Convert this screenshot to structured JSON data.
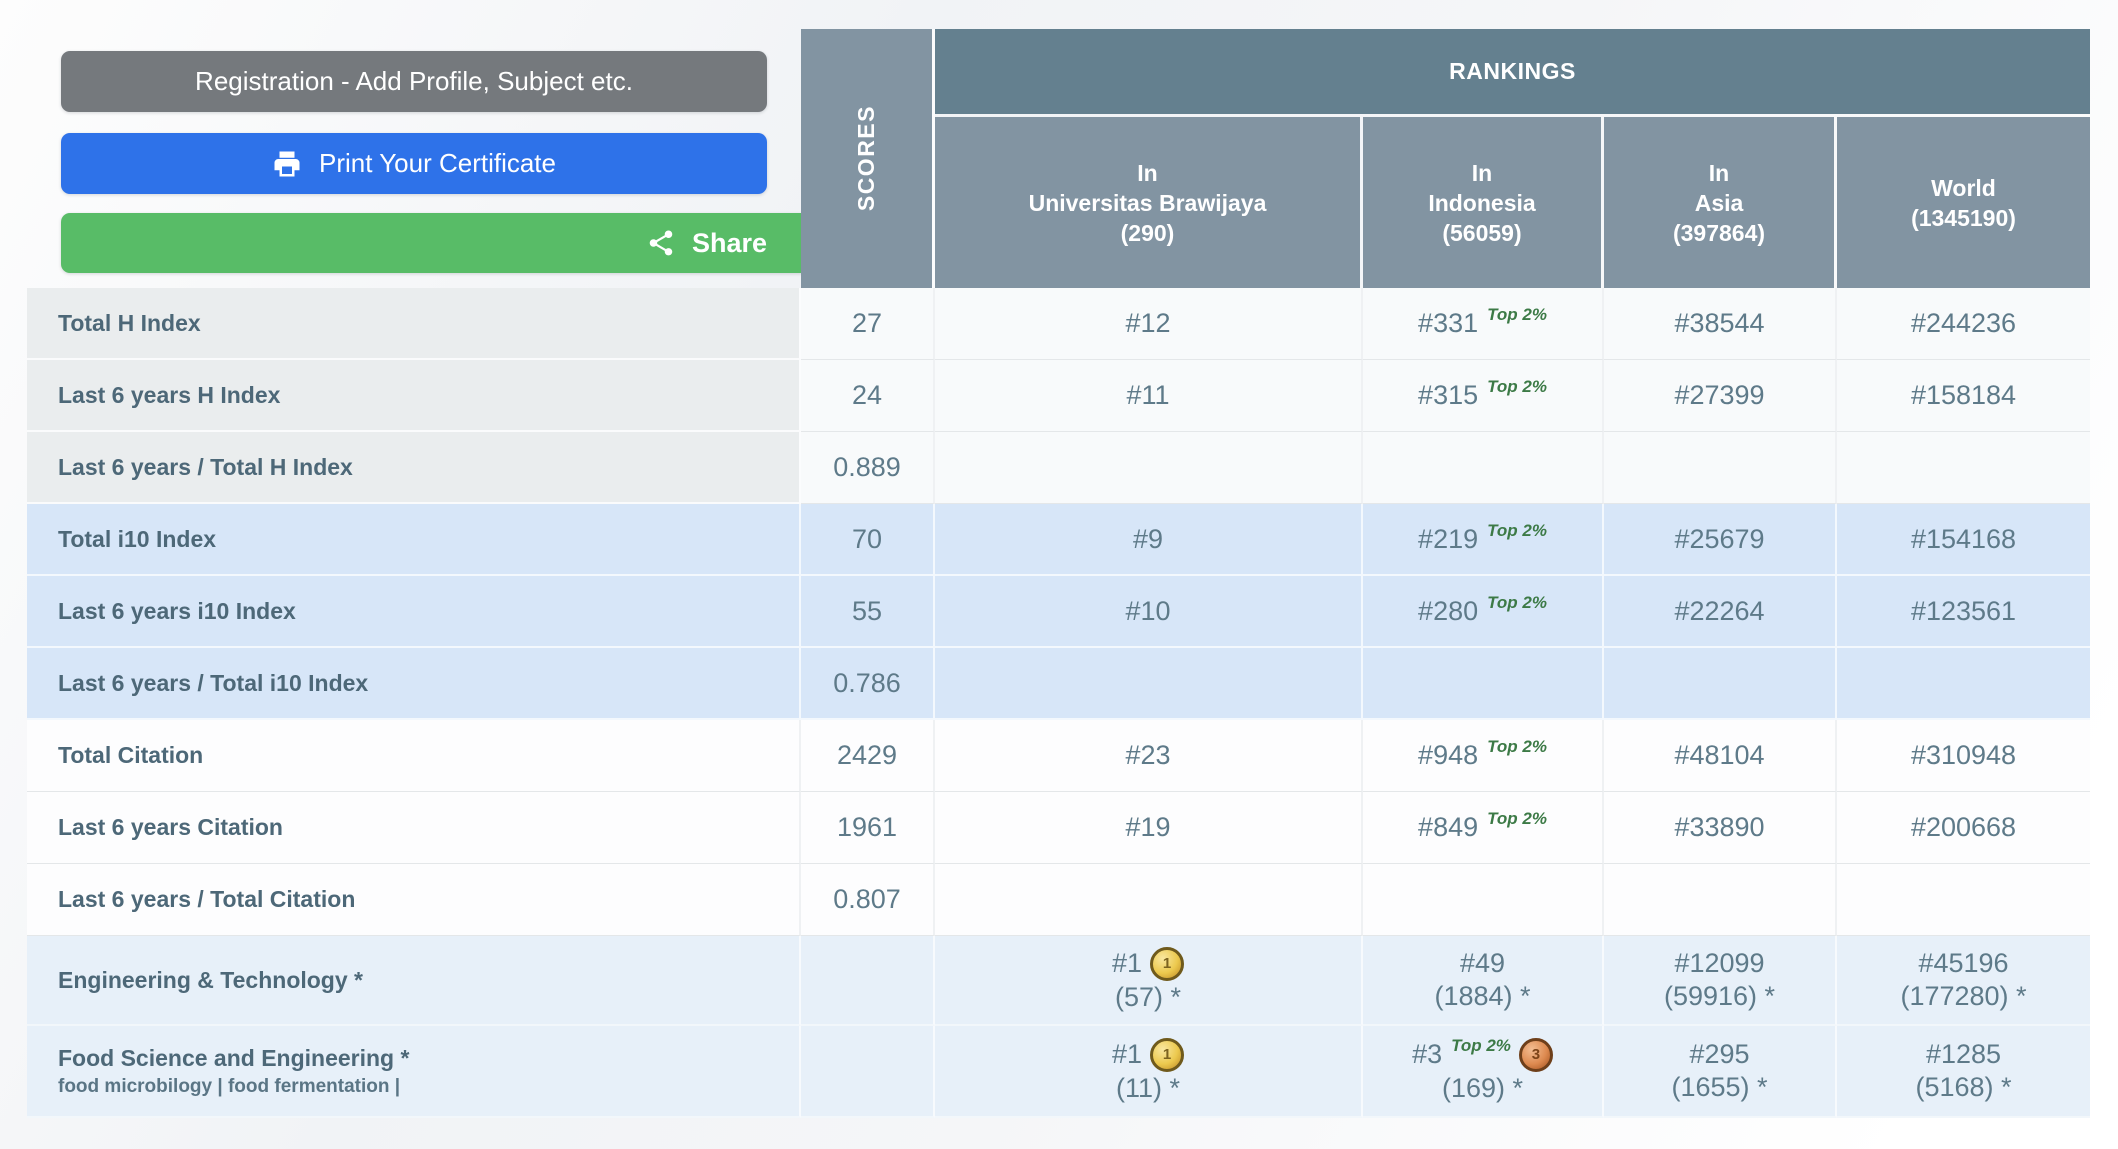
{
  "buttons": {
    "registration_label": "Registration - Add Profile, Subject etc.",
    "print_label": "Print Your Certificate",
    "share_label": "Share"
  },
  "table": {
    "scores_label": "SCORES",
    "rankings_label": "RANKINGS",
    "columns": [
      {
        "key": "universitas-brawijaya",
        "lines": [
          "In",
          "Universitas Brawijaya",
          "(290)"
        ]
      },
      {
        "key": "indonesia",
        "lines": [
          "In",
          "Indonesia",
          "(56059)"
        ]
      },
      {
        "key": "asia",
        "lines": [
          "In",
          "Asia",
          "(397864)"
        ]
      },
      {
        "key": "world",
        "lines": [
          "World",
          "(1345190)"
        ]
      }
    ],
    "medals": {
      "gold": "1",
      "bronze": "3"
    },
    "rows": [
      {
        "label": "Total H Index",
        "block": "h",
        "score": "27",
        "cells": [
          {
            "rank": "#12"
          },
          {
            "rank": "#331",
            "badge": "Top 2%"
          },
          {
            "rank": "#38544"
          },
          {
            "rank": "#244236"
          }
        ]
      },
      {
        "label": "Last 6 years H Index",
        "block": "h",
        "score": "24",
        "cells": [
          {
            "rank": "#11"
          },
          {
            "rank": "#315",
            "badge": "Top 2%"
          },
          {
            "rank": "#27399"
          },
          {
            "rank": "#158184"
          }
        ]
      },
      {
        "label": "Last 6 years / Total H Index",
        "block": "h",
        "score": "0.889",
        "cells": [
          {},
          {},
          {},
          {}
        ]
      },
      {
        "label": "Total i10 Index",
        "block": "i10",
        "score": "70",
        "cells": [
          {
            "rank": "#9"
          },
          {
            "rank": "#219",
            "badge": "Top 2%"
          },
          {
            "rank": "#25679"
          },
          {
            "rank": "#154168"
          }
        ]
      },
      {
        "label": "Last 6 years i10 Index",
        "block": "i10",
        "score": "55",
        "cells": [
          {
            "rank": "#10"
          },
          {
            "rank": "#280",
            "badge": "Top 2%"
          },
          {
            "rank": "#22264"
          },
          {
            "rank": "#123561"
          }
        ]
      },
      {
        "label": "Last 6 years / Total i10 Index",
        "block": "i10",
        "score": "0.786",
        "cells": [
          {},
          {},
          {},
          {}
        ]
      },
      {
        "label": "Total Citation",
        "block": "cit",
        "score": "2429",
        "cells": [
          {
            "rank": "#23"
          },
          {
            "rank": "#948",
            "badge": "Top 2%"
          },
          {
            "rank": "#48104"
          },
          {
            "rank": "#310948"
          }
        ]
      },
      {
        "label": "Last 6 years Citation",
        "block": "cit",
        "score": "1961",
        "cells": [
          {
            "rank": "#19"
          },
          {
            "rank": "#849",
            "badge": "Top 2%"
          },
          {
            "rank": "#33890"
          },
          {
            "rank": "#200668"
          }
        ]
      },
      {
        "label": "Last 6 years / Total Citation",
        "block": "cit",
        "score": "0.807",
        "cells": [
          {},
          {},
          {},
          {}
        ]
      },
      {
        "label": "Engineering & Technology *",
        "block": "sub",
        "score": "",
        "cells": [
          {
            "rank": "#1",
            "medal": "gold",
            "line2": "(57) *"
          },
          {
            "rank": "#49",
            "line2": "(1884) *"
          },
          {
            "rank": "#12099",
            "line2": "(59916) *"
          },
          {
            "rank": "#45196",
            "line2": "(177280) *"
          }
        ]
      },
      {
        "label": "Food Science and Engineering *",
        "sublabel": "food microbilogy | food fermentation |",
        "block": "sub",
        "score": "",
        "cells": [
          {
            "rank": "#1",
            "medal": "gold",
            "line2": "(11) *"
          },
          {
            "rank": "#3",
            "badge": "Top 2%",
            "medal": "bronze",
            "line2": "(169) *"
          },
          {
            "rank": "#295",
            "line2": "(1655) *"
          },
          {
            "rank": "#1285",
            "line2": "(5168) *"
          }
        ]
      }
    ]
  },
  "colors": {
    "header_dark": "#64808f",
    "header_mid": "#8294a2",
    "row_blue": "#d7e6f8",
    "row_subject": "#e7f0f9",
    "label_gray": "#eaedee",
    "badge_green": "#3c7a46",
    "button_gray": "#75797d",
    "button_blue": "#2e72e9",
    "button_green": "#58bc67",
    "button_green_dark": "#49a858",
    "text_label": "#4d6878",
    "text_value": "#5e7a89"
  }
}
